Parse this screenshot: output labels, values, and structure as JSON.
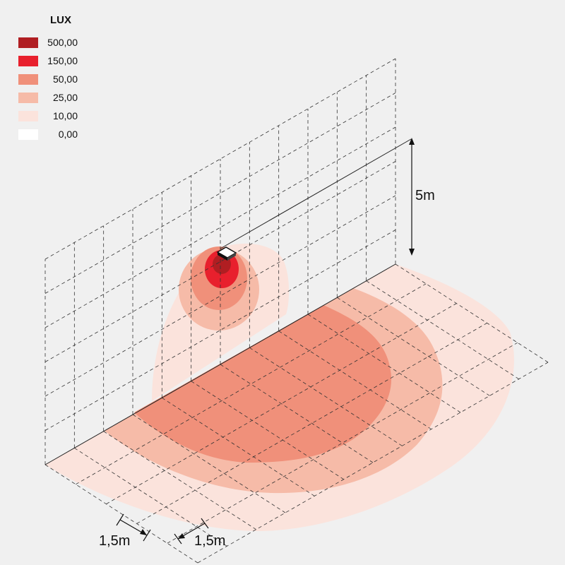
{
  "legend": {
    "title": "LUX",
    "items": [
      {
        "label": "500,00",
        "color": "#b01e22"
      },
      {
        "label": "150,00",
        "color": "#e8202d"
      },
      {
        "label": "50,00",
        "color": "#f0907a"
      },
      {
        "label": "25,00",
        "color": "#f6bba8"
      },
      {
        "label": "10,00",
        "color": "#fbe3dc"
      },
      {
        "label": "0,00",
        "color": "#ffffff"
      }
    ]
  },
  "dimensions": {
    "height": "5m",
    "grid_a": "1,5m",
    "grid_b": "1,5m"
  },
  "colors": {
    "background": "#f0f0f0",
    "gridline": "#333333"
  }
}
